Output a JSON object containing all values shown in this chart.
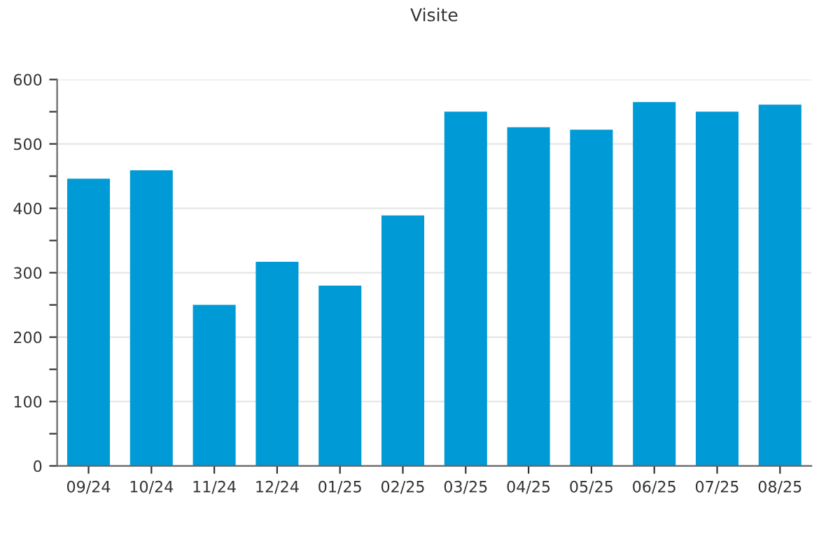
{
  "chart_data": {
    "type": "bar",
    "title": "Visite",
    "categories": [
      "09/24",
      "10/24",
      "11/24",
      "12/24",
      "01/25",
      "02/25",
      "03/25",
      "04/25",
      "05/25",
      "06/25",
      "07/25",
      "08/25"
    ],
    "values": [
      446,
      459,
      250,
      317,
      280,
      389,
      550,
      526,
      522,
      565,
      550,
      561
    ],
    "color": "#009ad6",
    "ylim": [
      0,
      600
    ],
    "yticks": [
      0,
      {
        "value": 50,
        "label": null
      },
      100,
      {
        "value": 150,
        "label": null
      },
      200,
      {
        "value": 250,
        "label": null
      },
      300,
      {
        "value": 350,
        "label": null
      },
      400,
      {
        "value": 450,
        "label": null
      },
      500,
      {
        "value": 550,
        "label": null
      },
      600
    ],
    "grid": "y"
  }
}
